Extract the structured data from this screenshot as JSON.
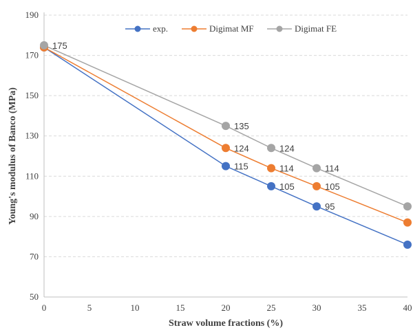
{
  "chart_data": {
    "type": "line",
    "title": "",
    "xlabel": "Straw volume fractions (%)",
    "ylabel": "Young's modulus of Banco (MPa)",
    "xlim": [
      0,
      40
    ],
    "ylim": [
      50,
      190
    ],
    "xticks": [
      0,
      5,
      10,
      15,
      20,
      25,
      30,
      35,
      40
    ],
    "yticks": [
      50,
      70,
      90,
      110,
      130,
      150,
      170,
      190
    ],
    "grid": "horizontal dashed",
    "legend_position": "top",
    "series": [
      {
        "name": "exp.",
        "color": "#4472C4",
        "x": [
          0,
          20,
          25,
          30,
          40
        ],
        "values": [
          174,
          115,
          105,
          95,
          76
        ],
        "labels": [
          "",
          "115",
          "105",
          "95",
          ""
        ]
      },
      {
        "name": "Digimat MF",
        "color": "#ED7D31",
        "x": [
          0,
          20,
          25,
          30,
          40
        ],
        "values": [
          174,
          124,
          114,
          105,
          87
        ],
        "labels": [
          "",
          "124",
          "114",
          "105",
          ""
        ]
      },
      {
        "name": "Digimat FE",
        "color": "#A5A5A5",
        "x": [
          0,
          20,
          25,
          30,
          40
        ],
        "values": [
          175,
          135,
          124,
          114,
          95
        ],
        "labels": [
          "175",
          "135",
          "124",
          "114",
          ""
        ]
      }
    ]
  }
}
